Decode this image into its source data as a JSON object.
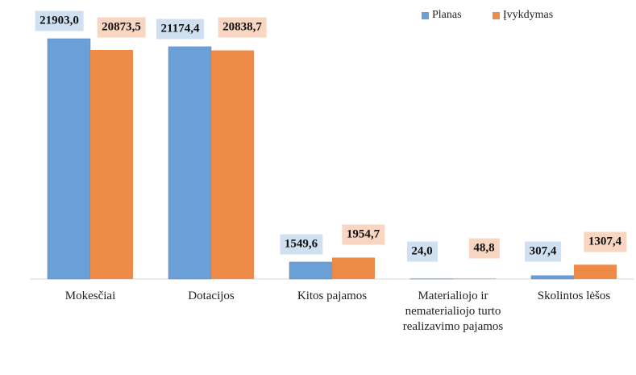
{
  "chart_data": {
    "type": "bar",
    "categories": [
      "Mokesčiai",
      "Dotacijos",
      "Kitos pajamos",
      "Materialiojo ir nematerialiojo turto realizavimo pajamos",
      "Skolintos lėšos"
    ],
    "series": [
      {
        "name": "Planas",
        "color": "#6a9fd8",
        "label_bg": "#cfe0f1",
        "values": [
          21903.0,
          21174.4,
          1549.6,
          24.0,
          307.4
        ],
        "value_labels": [
          "21903,0",
          "21174,4",
          "1549,6",
          "24,0",
          "307,4"
        ]
      },
      {
        "name": "Įvykdymas",
        "color": "#ee8a48",
        "label_bg": "#f8d6c2",
        "values": [
          20873.5,
          20838.7,
          1954.7,
          48.8,
          1307.4
        ],
        "value_labels": [
          "20873,5",
          "20838,7",
          "1954,7",
          "48,8",
          "1307,4"
        ]
      }
    ],
    "legend": "top-right"
  }
}
